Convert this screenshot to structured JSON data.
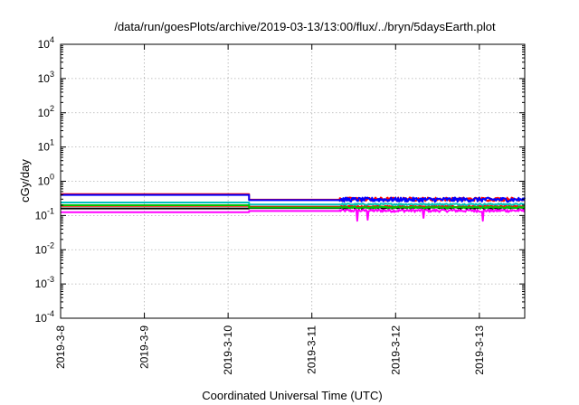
{
  "chart_data": {
    "type": "line",
    "title": "/data/run/goesPlots/archive/2019-03-13/13:00/flux/../bryn/5daysEarth.plot",
    "xlabel": "Coordinated Universal Time (UTC)",
    "ylabel": "cGy/day",
    "yscale": "log",
    "ylim": [
      0.0001,
      10000
    ],
    "xlim": [
      "2019-03-08T00:00",
      "2019-03-13T13:00"
    ],
    "grid": true,
    "x_ticks": [
      "2019-3-8",
      "2019-3-9",
      "2019-3-10",
      "2019-3-11",
      "2019-3-12",
      "2019-3-13"
    ],
    "y_ticks": [
      {
        "base": "10",
        "exp": "4"
      },
      {
        "base": "10",
        "exp": "3"
      },
      {
        "base": "10",
        "exp": "2"
      },
      {
        "base": "10",
        "exp": "1"
      },
      {
        "base": "10",
        "exp": "0"
      },
      {
        "base": "10",
        "exp": "-1"
      },
      {
        "base": "10",
        "exp": "-2"
      },
      {
        "base": "10",
        "exp": "-3"
      },
      {
        "base": "10",
        "exp": "-4"
      }
    ],
    "series": [
      {
        "color": "#ff00ff",
        "level_before": 0.125,
        "level_after": 0.135,
        "noise": 0.2,
        "dips": [
          [
            "2019-03-11T13:00",
            0.07
          ],
          [
            "2019-03-11T16:00",
            0.075
          ],
          [
            "2019-03-12T08:00",
            0.085
          ],
          [
            "2019-03-13T01:00",
            0.07
          ]
        ]
      },
      {
        "color": "#000000",
        "level_before": 0.16,
        "level_after": 0.165,
        "noise": 0.1,
        "dips": []
      },
      {
        "color": "#ff0000",
        "level_before": 0.19,
        "level_after": 0.18,
        "noise": 0.1,
        "dips": []
      },
      {
        "color": "#00c0c0",
        "level_before": 0.24,
        "level_after": 0.21,
        "noise": 0.1,
        "dips": []
      },
      {
        "color": "#00c000",
        "level_before": 0.2,
        "level_after": 0.17,
        "noise": 0.1,
        "dips": []
      },
      {
        "color": "#ff0000",
        "level_before": 0.42,
        "level_after": 0.29,
        "noise": 0.25,
        "dips": []
      },
      {
        "color": "#0000ff",
        "level_before": 0.4,
        "level_after": 0.28,
        "noise": 0.3,
        "dips": []
      }
    ],
    "step_time": "2019-03-10T06:00",
    "noisy_after": "2019-03-11T08:00"
  }
}
